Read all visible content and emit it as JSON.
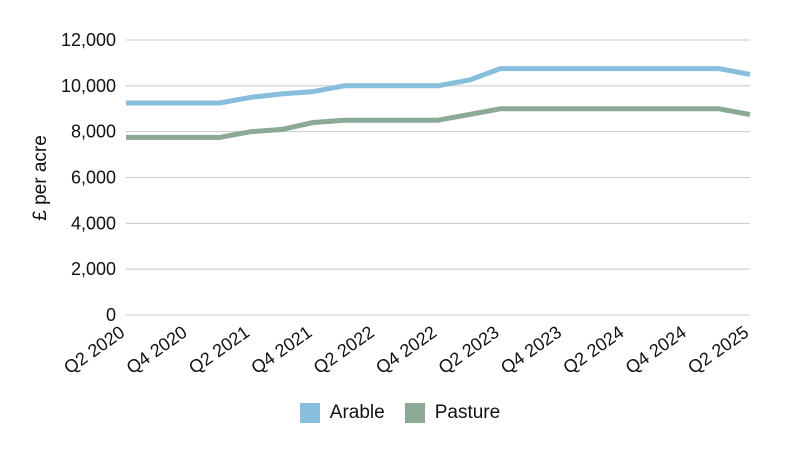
{
  "chart_data": {
    "type": "line",
    "title": "",
    "xlabel": "",
    "ylabel": "£ per acre",
    "ylim": [
      0,
      12000
    ],
    "yticks": [
      0,
      2000,
      4000,
      6000,
      8000,
      10000,
      12000
    ],
    "ytick_labels": [
      "0",
      "2,000",
      "4,000",
      "6,000",
      "8,000",
      "10,000",
      "12,000"
    ],
    "categories": [
      "Q2 2020",
      "Q3 2020",
      "Q4 2020",
      "Q1 2021",
      "Q2 2021",
      "Q3 2021",
      "Q4 2021",
      "Q1 2022",
      "Q2 2022",
      "Q3 2022",
      "Q4 2022",
      "Q1 2023",
      "Q2 2023",
      "Q3 2023",
      "Q4 2023",
      "Q1 2024",
      "Q2 2024",
      "Q3 2024",
      "Q4 2024",
      "Q1 2025",
      "Q2 2025"
    ],
    "xtick_labels": [
      "Q2 2020",
      "Q4 2020",
      "Q2 2021",
      "Q4 2021",
      "Q2 2022",
      "Q4 2022",
      "Q2 2023",
      "Q4 2023",
      "Q2 2024",
      "Q4 2024",
      "Q2 2025"
    ],
    "grid": true,
    "legend_position": "bottom",
    "series": [
      {
        "name": "Arable",
        "color": "#86bedc",
        "values": [
          9250,
          9250,
          9250,
          9250,
          9500,
          9650,
          9750,
          10000,
          10000,
          10000,
          10000,
          10250,
          10750,
          10750,
          10750,
          10750,
          10750,
          10750,
          10750,
          10750,
          10500
        ]
      },
      {
        "name": "Pasture",
        "color": "#8ca896",
        "values": [
          7750,
          7750,
          7750,
          7750,
          8000,
          8100,
          8400,
          8500,
          8500,
          8500,
          8500,
          8750,
          9000,
          9000,
          9000,
          9000,
          9000,
          9000,
          9000,
          9000,
          8750
        ]
      }
    ]
  }
}
